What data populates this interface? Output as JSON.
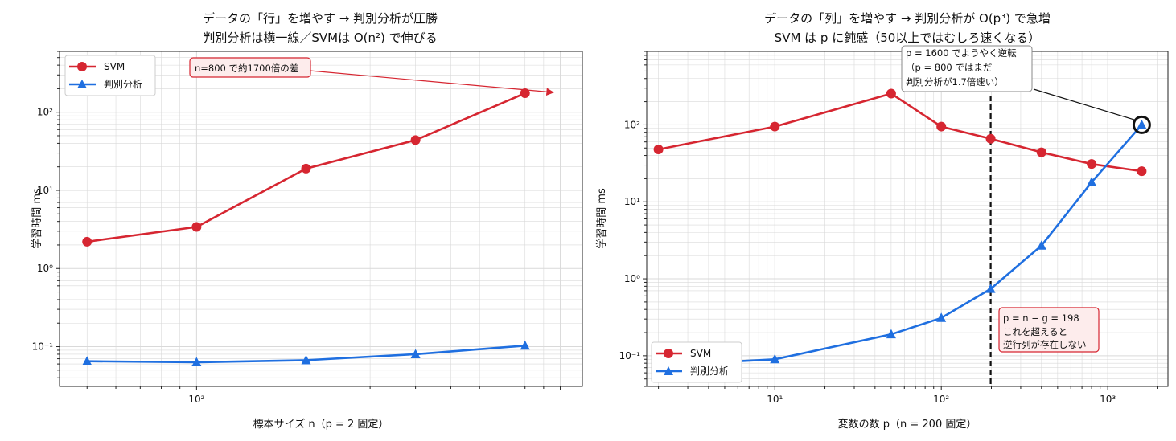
{
  "colors": {
    "svm": "#d62631",
    "lda": "#1f6fe0",
    "grid": "#d9d9d9",
    "ann_bg": "#fdecec"
  },
  "chart_data": [
    {
      "type": "line",
      "title": "データの「行」を増やす → 判別分析が圧勝",
      "subtitle": "判別分析は横一線／SVMは O(n²) で伸びる",
      "xlabel": "標本サイズ n（p = 2 固定）",
      "ylabel": "学習時間 ms",
      "xscale": "log",
      "yscale": "log",
      "xlim": [
        42,
        1150
      ],
      "ylim": [
        0.031,
        600
      ],
      "x_ticks": [
        {
          "value": 100,
          "label": "10²"
        }
      ],
      "y_ticks": [
        {
          "value": 0.1,
          "label": "10⁻¹"
        },
        {
          "value": 1,
          "label": "10⁰"
        },
        {
          "value": 10,
          "label": "10¹"
        },
        {
          "value": 100,
          "label": "10²"
        }
      ],
      "grid": true,
      "legend_position": "top-left",
      "x": [
        50,
        100,
        200,
        400,
        800
      ],
      "series": [
        {
          "name": "SVM",
          "marker": "circle",
          "values": [
            2.2,
            3.4,
            19,
            44,
            175
          ]
        },
        {
          "name": "判別分析",
          "marker": "triangle",
          "values": [
            0.065,
            0.063,
            0.067,
            0.08,
            0.103
          ]
        }
      ],
      "annotations": [
        {
          "text": "n=800 で約1700倍の差",
          "target_x": 800,
          "target_y": 175
        }
      ]
    },
    {
      "type": "line",
      "title": "データの「列」を増やす → 判別分析が O(p³) で急増",
      "subtitle": "SVM は p に鈍感（50以上ではむしろ速くなる）",
      "xlabel": "変数の数 p（n = 200 固定）",
      "ylabel": "学習時間 ms",
      "xscale": "log",
      "yscale": "log",
      "xlim": [
        1.7,
        2300
      ],
      "ylim": [
        0.04,
        900
      ],
      "x_ticks": [
        {
          "value": 10,
          "label": "10¹"
        },
        {
          "value": 100,
          "label": "10²"
        },
        {
          "value": 1000,
          "label": "10³"
        }
      ],
      "y_ticks": [
        {
          "value": 0.1,
          "label": "10⁻¹"
        },
        {
          "value": 1,
          "label": "10⁰"
        },
        {
          "value": 10,
          "label": "10¹"
        },
        {
          "value": 100,
          "label": "10²"
        }
      ],
      "grid": true,
      "legend_position": "bottom-left",
      "x": [
        2,
        10,
        50,
        100,
        198,
        400,
        800,
        1600
      ],
      "series": [
        {
          "name": "SVM",
          "marker": "circle",
          "values": [
            48,
            95,
            255,
            95,
            66,
            44,
            31,
            25
          ]
        },
        {
          "name": "判別分析",
          "marker": "triangle",
          "values": [
            0.075,
            0.09,
            0.19,
            0.31,
            0.74,
            2.7,
            18,
            100
          ]
        }
      ],
      "vline": {
        "x": 198
      },
      "highlight_point": {
        "x": 1600,
        "y": 100
      },
      "annotations": [
        {
          "lines": [
            "p = 1600 でようやく逆転",
            "（p = 800 ではまだ",
            "判別分析が1.7倍速い）"
          ],
          "target_x": 1600,
          "target_y": 100
        },
        {
          "lines": [
            "p = n − g = 198",
            "これを超えると",
            "逆行列が存在しない"
          ]
        }
      ]
    }
  ]
}
